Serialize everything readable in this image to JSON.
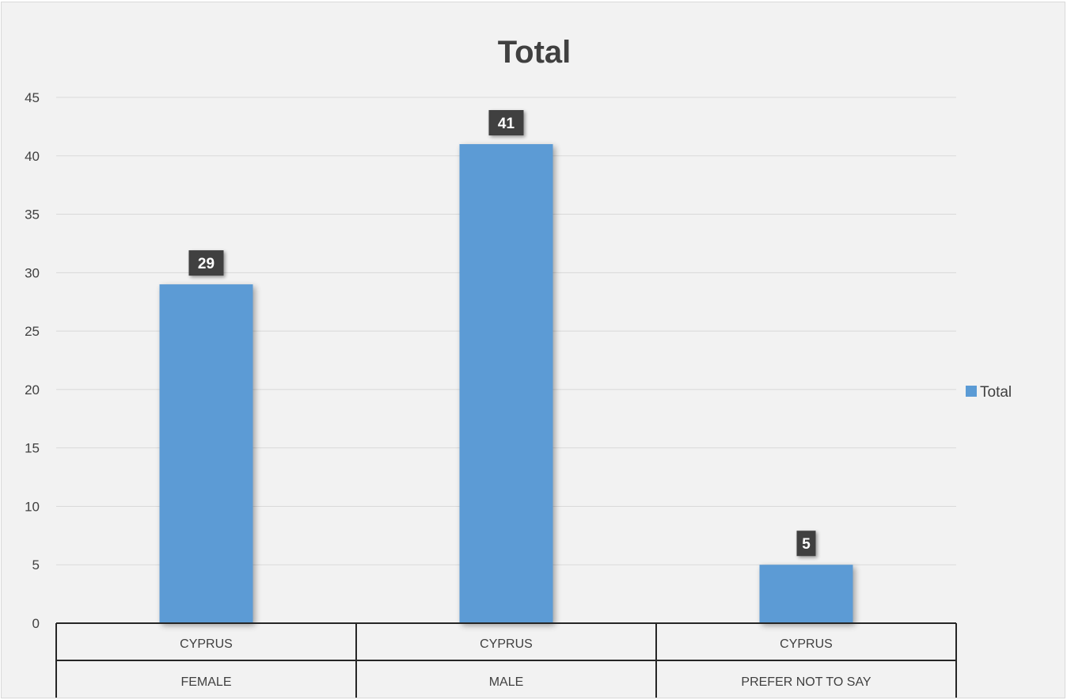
{
  "chart_data": {
    "type": "bar",
    "title": "Total",
    "xlabel": "",
    "ylabel": "",
    "categories": [
      {
        "outer": "FEMALE",
        "inner": "CYPRUS"
      },
      {
        "outer": "MALE",
        "inner": "CYPRUS"
      },
      {
        "outer": "PREFER NOT TO SAY",
        "inner": "CYPRUS"
      }
    ],
    "series": [
      {
        "name": "Total",
        "values": [
          29,
          41,
          5
        ],
        "color": "#5b9bd5"
      }
    ],
    "ylim": [
      0,
      45
    ],
    "yticks": [
      0,
      5,
      10,
      15,
      20,
      25,
      30,
      35,
      40,
      45
    ],
    "grid": true,
    "legend_position": "right",
    "data_labels": true,
    "data_label_background": "#404040"
  }
}
